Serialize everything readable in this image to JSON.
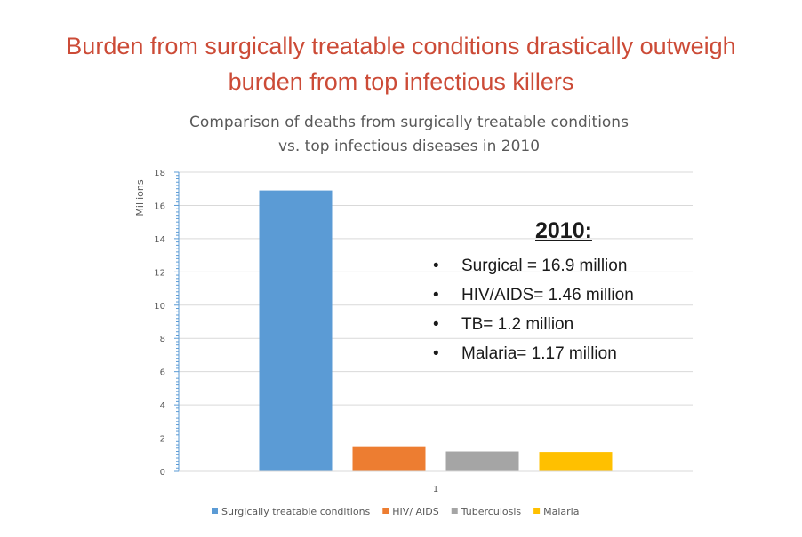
{
  "slide": {
    "title_line1": "Burden from surgically treatable conditions drastically outweigh",
    "title_line2": "burden from top infectious killers"
  },
  "annotation": {
    "heading": "2010:",
    "items": [
      "Surgical = 16.9 million",
      "HIV/AIDS= 1.46 million",
      "TB= 1.2 million",
      "Malaria= 1.17 million"
    ]
  },
  "chart_data": {
    "type": "bar",
    "title_lines": [
      "Comparison of deaths from surgically treatable conditions",
      "vs. top infectious diseases in 2010"
    ],
    "ylabel": "Millions",
    "xlabel": "",
    "categories": [
      "1"
    ],
    "ylim": [
      0,
      18
    ],
    "yticks": [
      0,
      2,
      4,
      6,
      8,
      10,
      12,
      14,
      16,
      18
    ],
    "grid": true,
    "legend_position": "bottom",
    "series": [
      {
        "name": "Surgically treatable conditions",
        "values": [
          16.9
        ],
        "color": "#5b9bd5"
      },
      {
        "name": "HIV/ AIDS",
        "values": [
          1.46
        ],
        "color": "#ed7d31"
      },
      {
        "name": "Tuberculosis",
        "values": [
          1.2
        ],
        "color": "#a5a5a5"
      },
      {
        "name": "Malaria",
        "values": [
          1.17
        ],
        "color": "#ffc000"
      }
    ]
  }
}
